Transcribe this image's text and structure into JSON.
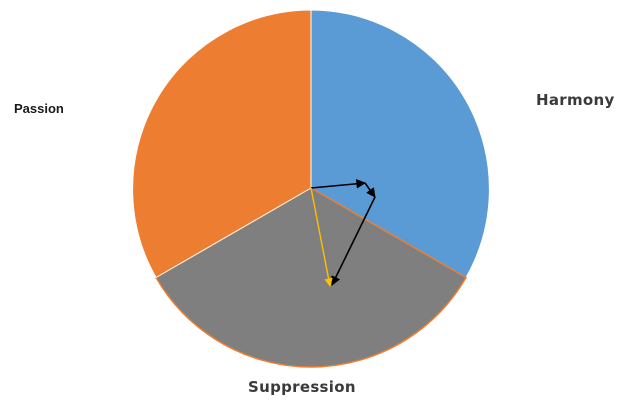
{
  "diagram": {
    "segments": [
      {
        "label": "Harmony",
        "color": "#5b9bd5"
      },
      {
        "label": "Suppression",
        "color": "#7f7f7f"
      },
      {
        "label": "Passion",
        "color": "#ed7d31"
      }
    ],
    "vector_colors": {
      "path": "#000000",
      "resultant": "#ffc000"
    }
  }
}
